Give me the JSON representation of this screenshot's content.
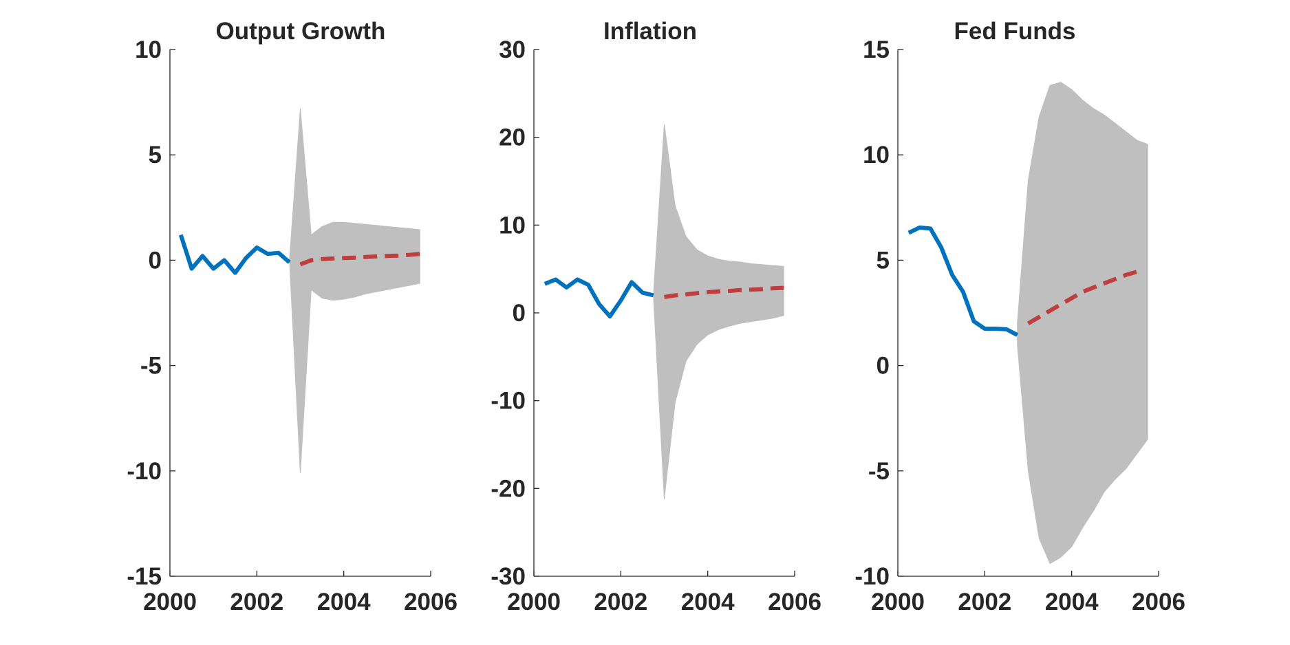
{
  "chart_data": [
    {
      "type": "line",
      "title": "Output Growth",
      "xlim": [
        2000,
        2006
      ],
      "ylim": [
        -15,
        10
      ],
      "xticks": [
        2000,
        2002,
        2004,
        2006
      ],
      "yticks": [
        10,
        5,
        0,
        -5,
        -10,
        -15
      ],
      "xtick_labels": [
        "2000",
        "2002",
        "2004",
        "2006"
      ],
      "ytick_labels": [
        "10",
        "5",
        "0",
        "-5",
        "-10",
        "-15"
      ],
      "grid": false,
      "series": [
        {
          "role": "history",
          "style": "solid",
          "color": "#0072BD",
          "x": [
            2000.25,
            2000.5,
            2000.75,
            2001.0,
            2001.25,
            2001.5,
            2001.75,
            2002.0,
            2002.25,
            2002.5,
            2002.75
          ],
          "y": [
            1.2,
            -0.4,
            0.2,
            -0.4,
            0.0,
            -0.6,
            0.1,
            0.6,
            0.3,
            0.35,
            -0.1
          ]
        },
        {
          "role": "forecast",
          "style": "dashed",
          "color": "#BF3F3F",
          "x": [
            2003.0,
            2003.25,
            2003.5,
            2003.75,
            2004.0,
            2004.25,
            2004.5,
            2004.75,
            2005.0,
            2005.25,
            2005.5,
            2005.75
          ],
          "y": [
            -0.2,
            0.0,
            0.05,
            0.08,
            0.1,
            0.12,
            0.15,
            0.18,
            0.2,
            0.22,
            0.25,
            0.3
          ]
        }
      ],
      "band": {
        "color": "#bfbfbf",
        "x": [
          2002.75,
          2003.0,
          2003.25,
          2003.5,
          2003.75,
          2004.0,
          2004.25,
          2004.5,
          2004.75,
          2005.0,
          2005.25,
          2005.5,
          2005.75
        ],
        "upper": [
          0.0,
          7.2,
          1.2,
          1.6,
          1.8,
          1.8,
          1.75,
          1.7,
          1.65,
          1.6,
          1.55,
          1.5,
          1.45
        ],
        "lower": [
          0.0,
          -10.1,
          -1.4,
          -1.8,
          -1.9,
          -1.85,
          -1.75,
          -1.6,
          -1.5,
          -1.4,
          -1.3,
          -1.2,
          -1.1
        ]
      }
    },
    {
      "type": "line",
      "title": "Inflation",
      "xlim": [
        2000,
        2006
      ],
      "ylim": [
        -30,
        30
      ],
      "xticks": [
        2000,
        2002,
        2004,
        2006
      ],
      "yticks": [
        30,
        20,
        10,
        0,
        -10,
        -20,
        -30
      ],
      "xtick_labels": [
        "2000",
        "2002",
        "2004",
        "2006"
      ],
      "ytick_labels": [
        "30",
        "20",
        "10",
        "0",
        "-10",
        "-20",
        "-30"
      ],
      "grid": false,
      "series": [
        {
          "role": "history",
          "style": "solid",
          "color": "#0072BD",
          "x": [
            2000.25,
            2000.5,
            2000.75,
            2001.0,
            2001.25,
            2001.5,
            2001.75,
            2002.0,
            2002.25,
            2002.5,
            2002.75
          ],
          "y": [
            3.3,
            3.8,
            2.9,
            3.8,
            3.2,
            1.0,
            -0.4,
            1.4,
            3.5,
            2.3,
            2.0
          ]
        },
        {
          "role": "forecast",
          "style": "dashed",
          "color": "#BF3F3F",
          "x": [
            2003.0,
            2003.25,
            2003.5,
            2003.75,
            2004.0,
            2004.25,
            2004.5,
            2004.75,
            2005.0,
            2005.25,
            2005.5,
            2005.75
          ],
          "y": [
            1.8,
            2.0,
            2.1,
            2.25,
            2.35,
            2.45,
            2.5,
            2.6,
            2.65,
            2.7,
            2.8,
            2.85
          ]
        }
      ],
      "band": {
        "color": "#bfbfbf",
        "x": [
          2002.75,
          2003.0,
          2003.25,
          2003.5,
          2003.75,
          2004.0,
          2004.25,
          2004.5,
          2004.75,
          2005.0,
          2005.25,
          2005.5,
          2005.75
        ],
        "upper": [
          2.0,
          21.5,
          12.2,
          8.7,
          7.2,
          6.5,
          6.1,
          5.9,
          5.8,
          5.6,
          5.5,
          5.4,
          5.3
        ],
        "lower": [
          2.0,
          -21.2,
          -10.2,
          -5.5,
          -3.6,
          -2.5,
          -1.9,
          -1.5,
          -1.2,
          -1.0,
          -0.8,
          -0.6,
          -0.3
        ]
      }
    },
    {
      "type": "line",
      "title": "Fed Funds",
      "xlim": [
        2000,
        2006
      ],
      "ylim": [
        -10,
        15
      ],
      "xticks": [
        2000,
        2002,
        2004,
        2006
      ],
      "yticks": [
        15,
        10,
        5,
        0,
        -5,
        -10
      ],
      "xtick_labels": [
        "2000",
        "2002",
        "2004",
        "2006"
      ],
      "ytick_labels": [
        "15",
        "10",
        "5",
        "0",
        "-5",
        "-10"
      ],
      "grid": false,
      "series": [
        {
          "role": "history",
          "style": "solid",
          "color": "#0072BD",
          "x": [
            2000.25,
            2000.5,
            2000.75,
            2001.0,
            2001.25,
            2001.5,
            2001.75,
            2002.0,
            2002.25,
            2002.5,
            2002.75
          ],
          "y": [
            6.3,
            6.55,
            6.5,
            5.6,
            4.3,
            3.5,
            2.1,
            1.75,
            1.75,
            1.72,
            1.45
          ]
        },
        {
          "role": "forecast",
          "style": "dashed",
          "color": "#BF3F3F",
          "x": [
            2003.0,
            2003.25,
            2003.5,
            2003.75,
            2004.0,
            2004.25,
            2004.5,
            2004.75,
            2005.0,
            2005.25,
            2005.5
          ],
          "y": [
            2.0,
            2.3,
            2.6,
            2.9,
            3.2,
            3.5,
            3.7,
            3.9,
            4.1,
            4.3,
            4.45
          ]
        }
      ],
      "band": {
        "color": "#bfbfbf",
        "x": [
          2002.75,
          2003.0,
          2003.25,
          2003.5,
          2003.75,
          2004.0,
          2004.25,
          2004.5,
          2004.75,
          2005.0,
          2005.25,
          2005.5,
          2005.75
        ],
        "upper": [
          2.0,
          8.8,
          11.8,
          13.3,
          13.45,
          13.1,
          12.6,
          12.2,
          11.9,
          11.5,
          11.1,
          10.7,
          10.5
        ],
        "lower": [
          1.0,
          -5.0,
          -8.2,
          -9.4,
          -9.1,
          -8.6,
          -7.7,
          -6.9,
          -6.0,
          -5.4,
          -4.9,
          -4.2,
          -3.5
        ]
      }
    }
  ]
}
